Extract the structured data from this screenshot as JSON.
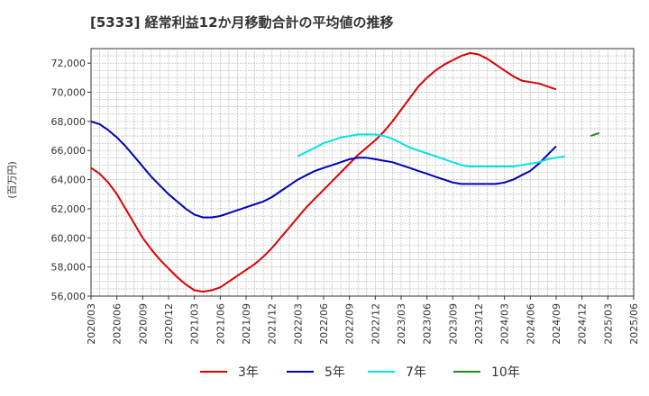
{
  "chart_data": {
    "type": "line",
    "title": "[5333]  経常利益12か月移動合計の平均値の推移",
    "ylabel": "(百万円)",
    "xlabel": "",
    "ylim": [
      56000,
      73000
    ],
    "yticks": [
      56000,
      58000,
      60000,
      62000,
      64000,
      66000,
      68000,
      70000,
      72000
    ],
    "ytick_labels": [
      "56,000",
      "58,000",
      "60,000",
      "62,000",
      "64,000",
      "66,000",
      "68,000",
      "70,000",
      "72,000"
    ],
    "xtick_labels": [
      "2020/03",
      "2020/06",
      "2020/09",
      "2020/12",
      "2021/03",
      "2021/06",
      "2021/09",
      "2021/12",
      "2022/03",
      "2022/06",
      "2022/09",
      "2022/12",
      "2023/03",
      "2023/06",
      "2023/09",
      "2023/12",
      "2024/03",
      "2024/06",
      "2024/09",
      "2024/12",
      "2025/03",
      "2025/06"
    ],
    "grid": true,
    "legend_position": "bottom",
    "series": [
      {
        "name": "3年",
        "color": "#dd0000",
        "start": "2020/03",
        "values": [
          64800,
          64400,
          63800,
          63000,
          62000,
          61000,
          60000,
          59200,
          58500,
          57900,
          57300,
          56800,
          56400,
          56300,
          56400,
          56600,
          57000,
          57400,
          57800,
          58200,
          58700,
          59300,
          60000,
          60700,
          61400,
          62100,
          62700,
          63300,
          63900,
          64500,
          65100,
          65700,
          66200,
          66700,
          67300,
          68000,
          68800,
          69600,
          70400,
          71000,
          71500,
          71900,
          72200,
          72500,
          72700,
          72600,
          72300,
          71900,
          71500,
          71100,
          70800,
          70700,
          70600,
          70400,
          70200
        ]
      },
      {
        "name": "5年",
        "color": "#0000bb",
        "start": "2020/03",
        "values": [
          68000,
          67800,
          67400,
          66900,
          66300,
          65600,
          64900,
          64200,
          63600,
          63000,
          62500,
          62000,
          61600,
          61400,
          61400,
          61500,
          61700,
          61900,
          62100,
          62300,
          62500,
          62800,
          63200,
          63600,
          64000,
          64300,
          64600,
          64800,
          65000,
          65200,
          65400,
          65500,
          65500,
          65400,
          65300,
          65200,
          65000,
          64800,
          64600,
          64400,
          64200,
          64000,
          63800,
          63700,
          63700,
          63700,
          63700,
          63700,
          63800,
          64000,
          64300,
          64600,
          65100,
          65700,
          66300
        ]
      },
      {
        "name": "7年",
        "color": "#00e5e5",
        "start": "2022/03",
        "values": [
          65600,
          65900,
          66200,
          66500,
          66700,
          66900,
          67000,
          67100,
          67100,
          67100,
          67000,
          66800,
          66500,
          66200,
          66000,
          65800,
          65600,
          65400,
          65200,
          65000,
          64900,
          64900,
          64900,
          64900,
          64900,
          64900,
          65000,
          65100,
          65200,
          65400,
          65500,
          65600
        ]
      },
      {
        "name": "10年",
        "color": "#228822",
        "start": "2025/01",
        "values": [
          67000,
          67200
        ]
      }
    ]
  }
}
